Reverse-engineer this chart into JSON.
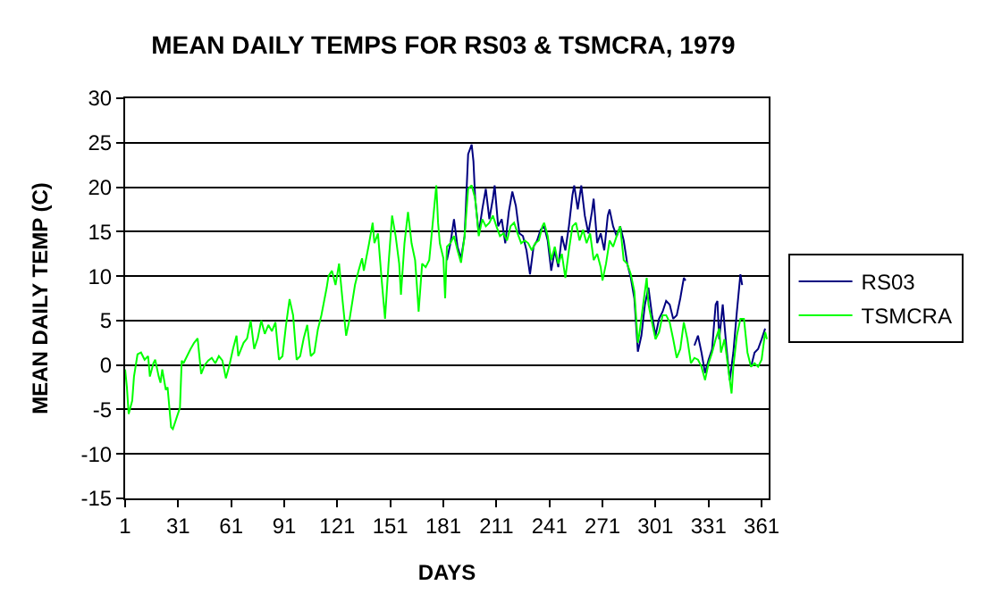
{
  "chart_data": {
    "type": "line",
    "title": "MEAN DAILY TEMPS FOR RS03 & TSMCRA, 1979",
    "xlabel": "DAYS",
    "ylabel": "MEAN DAILY TEMP (C)",
    "xlim": [
      1,
      365
    ],
    "xticks": [
      1,
      31,
      61,
      91,
      121,
      151,
      181,
      211,
      241,
      271,
      301,
      331,
      361
    ],
    "ylim": [
      -15,
      30
    ],
    "yticks": [
      -15,
      -10,
      -5,
      0,
      5,
      10,
      15,
      20,
      25,
      30
    ],
    "grid": "y",
    "legend": "right",
    "marker": "none",
    "line_style": "solid",
    "series": [
      {
        "name": "RS03",
        "color": "#000080",
        "x": [
          183,
          185,
          187,
          189,
          191,
          193,
          195,
          197,
          198,
          199,
          201,
          203,
          205,
          207,
          209,
          210,
          212,
          214,
          216,
          218,
          220,
          222,
          224,
          226,
          228,
          230,
          232,
          234,
          236,
          238,
          240,
          242,
          244,
          246,
          248,
          250,
          252,
          254,
          255,
          257,
          259,
          261,
          263,
          265,
          266,
          268,
          270,
          272,
          274,
          275,
          277,
          279,
          281,
          283,
          285,
          287,
          289,
          291,
          293,
          295,
          297,
          299,
          301,
          303,
          305,
          307,
          309,
          311,
          313,
          315,
          317,
          318,
          320,
          323,
          325,
          327,
          329,
          331,
          333,
          335,
          336,
          337,
          339,
          341,
          343,
          345,
          347,
          349,
          350,
          352,
          355,
          357,
          359,
          361,
          363
        ],
        "values": [
          11.8,
          13.7,
          16.4,
          13.3,
          12,
          14.5,
          23.7,
          24.8,
          22.9,
          18.7,
          14.8,
          17.5,
          19.8,
          16.4,
          18.7,
          20.2,
          15.6,
          16.4,
          13.7,
          17.2,
          19.5,
          17.9,
          14.8,
          14.5,
          12.9,
          10.2,
          13.3,
          14,
          15.2,
          15.6,
          14,
          10.6,
          12.9,
          11,
          14.5,
          12.9,
          15.6,
          19.1,
          20.2,
          17.5,
          20.2,
          16.8,
          14.8,
          17.2,
          18.7,
          13.7,
          14.8,
          12.9,
          16.8,
          17.5,
          15.6,
          14.5,
          15.6,
          14,
          11.4,
          9.8,
          7.5,
          1.5,
          3.3,
          6.8,
          8.7,
          5.6,
          3.3,
          5.2,
          6,
          7.2,
          6.8,
          5.2,
          5.6,
          7.5,
          9.8,
          9.5,
          null,
          2.2,
          3.3,
          1.4,
          -0.9,
          0.6,
          1.8,
          6.8,
          7.2,
          2.9,
          6.8,
          2.2,
          -1.7,
          1.4,
          6,
          10.2,
          9,
          null,
          -0.2,
          1.4,
          1.8,
          2.9,
          4.1
        ]
      },
      {
        "name": "TSMCRA",
        "color": "#00ff00",
        "x": [
          1,
          2,
          3,
          5,
          6,
          8,
          10,
          12,
          14,
          15,
          17,
          18,
          20,
          21,
          22,
          24,
          25,
          27,
          28,
          30,
          32,
          33,
          34,
          36,
          38,
          40,
          42,
          44,
          46,
          48,
          50,
          52,
          54,
          56,
          58,
          60,
          62,
          64,
          65,
          68,
          70,
          72,
          74,
          76,
          78,
          80,
          82,
          84,
          86,
          88,
          90,
          92,
          94,
          96,
          98,
          100,
          102,
          104,
          106,
          108,
          110,
          112,
          115,
          116,
          118,
          120,
          122,
          124,
          126,
          128,
          131,
          133,
          135,
          136,
          139,
          141,
          142,
          144,
          146,
          148,
          150,
          152,
          154,
          156,
          157,
          159,
          161,
          163,
          165,
          166,
          167,
          169,
          171,
          173,
          175,
          177,
          178,
          179,
          181,
          182,
          183,
          185,
          187,
          189,
          191,
          193,
          195,
          197,
          199,
          201,
          203,
          205,
          207,
          209,
          211,
          213,
          215,
          217,
          219,
          221,
          223,
          225,
          227,
          229,
          231,
          233,
          235,
          237,
          238,
          240,
          242,
          244,
          246,
          248,
          250,
          252,
          254,
          256,
          258,
          260,
          262,
          264,
          266,
          268,
          270,
          271,
          273,
          275,
          277,
          279,
          281,
          283,
          285,
          287,
          289,
          291,
          292,
          294,
          296,
          297,
          299,
          301,
          303,
          305,
          307,
          309,
          311,
          313,
          315,
          317,
          319,
          321,
          323,
          325,
          327,
          329,
          331,
          333,
          335,
          337,
          338,
          340,
          343,
          344,
          345,
          347,
          349,
          351,
          353,
          355,
          357,
          359,
          361,
          363,
          364
        ],
        "values": [
          -0.5,
          -2.5,
          -5.5,
          -4,
          -1.3,
          1.2,
          1.4,
          0.6,
          1,
          -1.3,
          0.2,
          0.6,
          -1.3,
          -2,
          -0.5,
          -2.8,
          -2.5,
          -7,
          -7.2,
          -6,
          -4.8,
          0.5,
          0.2,
          1,
          1.8,
          2.5,
          3,
          -1,
          0,
          0.5,
          0.8,
          0.2,
          1,
          0.5,
          -1.5,
          0,
          1.8,
          3.3,
          1,
          2.5,
          3,
          5,
          1.8,
          3,
          5,
          3.5,
          4.5,
          3.8,
          4.8,
          0.6,
          1,
          4.5,
          7.4,
          5.6,
          0.6,
          1,
          3,
          4.5,
          1,
          1.4,
          4,
          5.6,
          8.7,
          10,
          10.6,
          9,
          11.4,
          7.2,
          3.3,
          5.2,
          9,
          10.6,
          12,
          10.6,
          13.7,
          16,
          13.7,
          14.8,
          9.8,
          5.2,
          11.4,
          16.8,
          14.5,
          11.4,
          7.9,
          13.7,
          17.2,
          13.7,
          11.8,
          9,
          6,
          11.4,
          11,
          11.8,
          16,
          20.2,
          16,
          13.7,
          12,
          7.5,
          13.3,
          13.7,
          14.5,
          12.9,
          11.5,
          14.5,
          19.8,
          20.2,
          18.7,
          14.5,
          16.4,
          15.6,
          16,
          16.8,
          15.6,
          14.5,
          14.8,
          14,
          15.6,
          16,
          14.8,
          13.7,
          14,
          13.7,
          12.9,
          13.7,
          14,
          15.6,
          16,
          14.5,
          11.8,
          13.3,
          11.4,
          12.5,
          9.8,
          12.9,
          15.6,
          16,
          14,
          15.2,
          13.7,
          14.8,
          11.8,
          12.5,
          11,
          9.5,
          11.4,
          14,
          13.3,
          14.5,
          15.6,
          11.8,
          11.4,
          10.2,
          8.3,
          2.5,
          3.7,
          6.8,
          9.8,
          6.8,
          4.8,
          2.9,
          3.7,
          5.6,
          5.6,
          4.8,
          2.9,
          0.8,
          1.8,
          4.8,
          2.9,
          0.2,
          0.8,
          0.6,
          -0.2,
          -1.7,
          0.2,
          1.4,
          2.9,
          4.1,
          1.4,
          2.9,
          -1.7,
          -3.2,
          -0.2,
          3.3,
          5.2,
          5.2,
          1.4,
          -0.2,
          0.2,
          -0.2,
          0.6,
          3.7,
          2.9
        ]
      }
    ]
  }
}
